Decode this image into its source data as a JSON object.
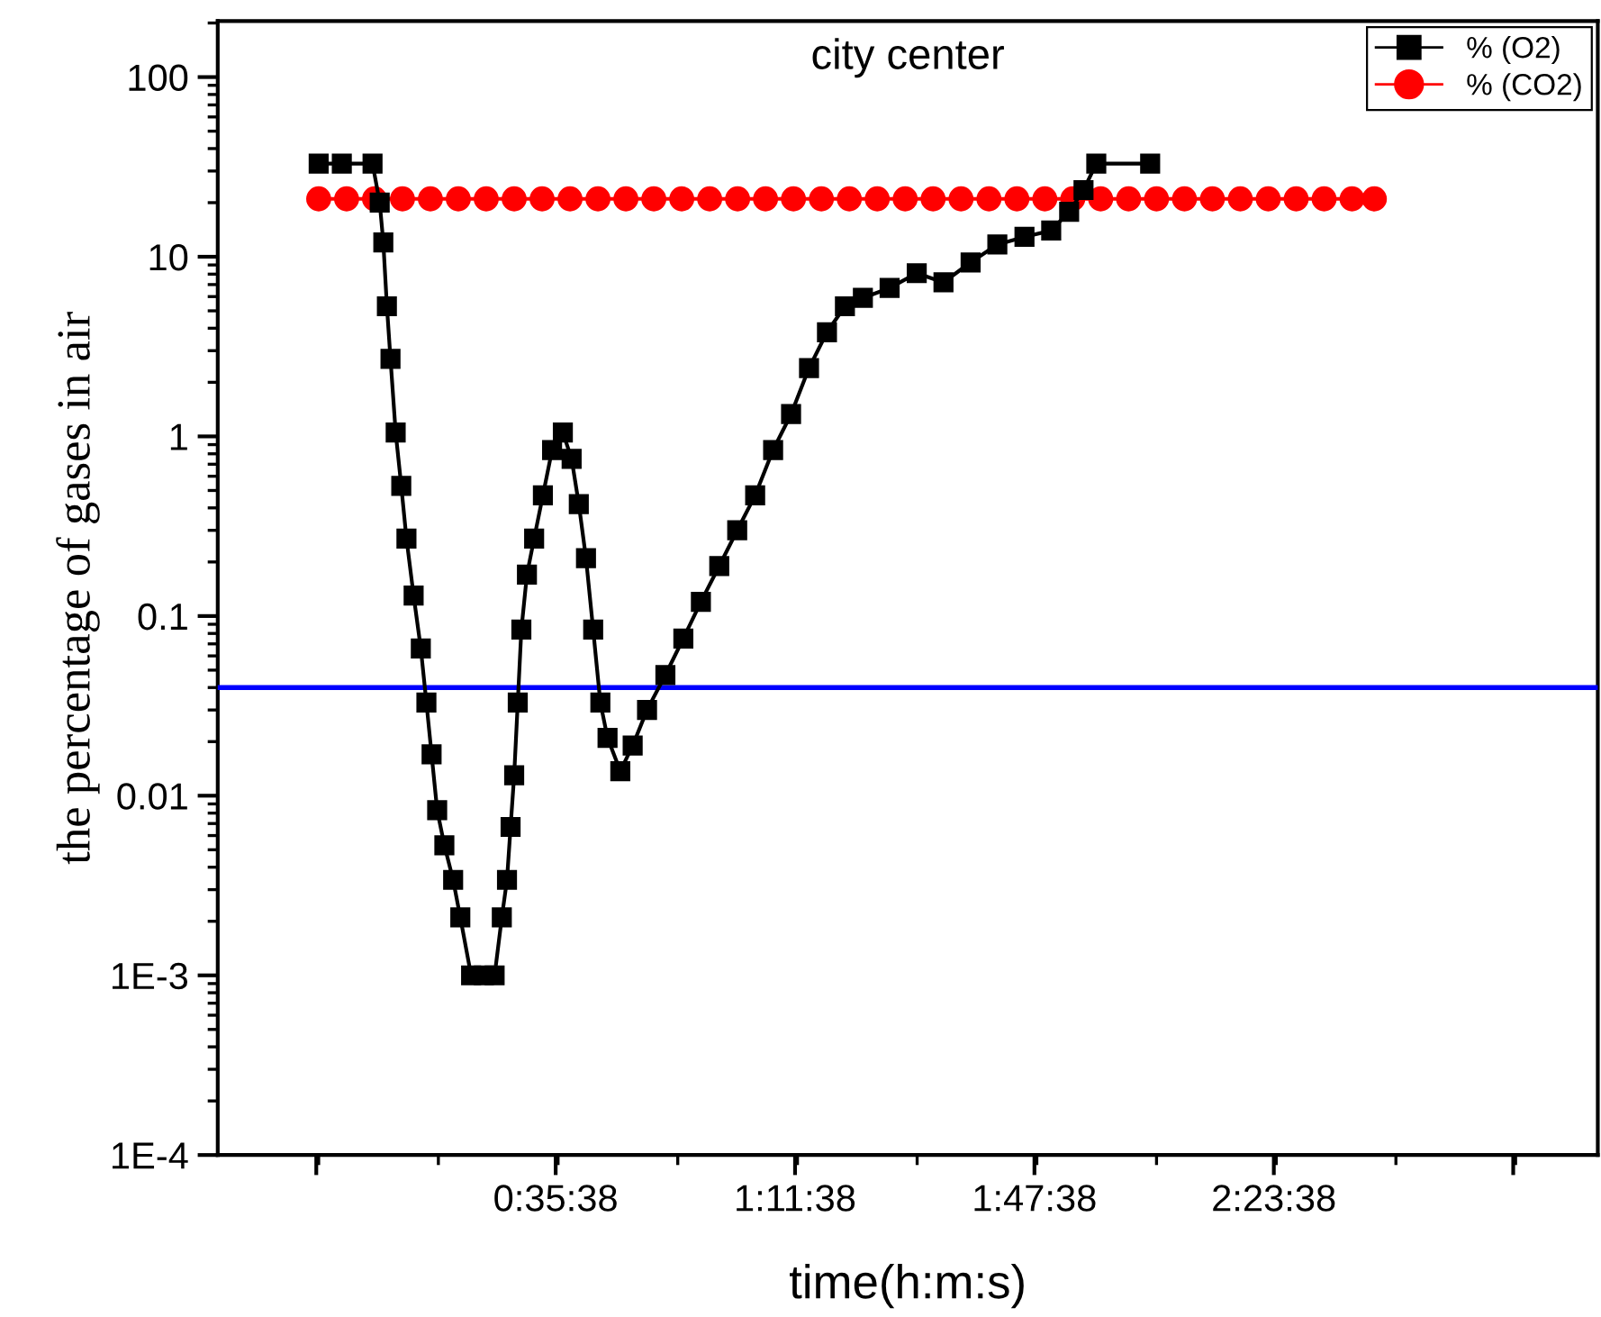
{
  "chart_data": {
    "type": "line",
    "title": "city center",
    "xlabel": "time(h:m:s)",
    "ylabel": "the percentage of gases in air",
    "log": "y",
    "ylim": [
      0.0001,
      205
    ],
    "yticks": [
      {
        "value": 100,
        "label": "100"
      },
      {
        "value": 10,
        "label": "10"
      },
      {
        "value": 1,
        "label": "1"
      },
      {
        "value": 0.1,
        "label": "0.1"
      },
      {
        "value": 0.01,
        "label": "0.01"
      },
      {
        "value": 0.001,
        "label": "1E-3"
      },
      {
        "value": 0.0001,
        "label": "1E-4"
      }
    ],
    "xlim": [
      -0.253,
      3.206
    ],
    "xticks": [
      {
        "value": -0.006,
        "label": null
      },
      {
        "value": 0.594,
        "label": "0:35:38"
      },
      {
        "value": 1.194,
        "label": "1:11:38"
      },
      {
        "value": 1.794,
        "label": "1:47:38"
      },
      {
        "value": 2.394,
        "label": "2:23:38"
      },
      {
        "value": 2.994,
        "label": null
      }
    ],
    "grid": false,
    "legend": "top right",
    "ref_lines": [
      {
        "axis": "y",
        "value": 0.04,
        "color": "#0000ff"
      }
    ],
    "series": [
      {
        "name": "% (O2)",
        "color": "#000000",
        "marker": "square",
        "x": [
          0.0,
          0.058,
          0.135,
          0.153,
          0.162,
          0.171,
          0.18,
          0.193,
          0.207,
          0.22,
          0.238,
          0.256,
          0.27,
          0.283,
          0.297,
          0.315,
          0.337,
          0.355,
          0.382,
          0.414,
          0.441,
          0.459,
          0.472,
          0.481,
          0.49,
          0.499,
          0.508,
          0.522,
          0.54,
          0.562,
          0.585,
          0.612,
          0.634,
          0.652,
          0.67,
          0.688,
          0.706,
          0.724,
          0.756,
          0.787,
          0.823,
          0.869,
          0.914,
          0.958,
          1.004,
          1.049,
          1.094,
          1.139,
          1.184,
          1.229,
          1.274,
          1.319,
          1.364,
          1.431,
          1.499,
          1.566,
          1.634,
          1.701,
          1.769,
          1.836,
          1.881,
          1.917,
          1.949,
          2.084
        ],
        "values": [
          33,
          33,
          33,
          20,
          12,
          5.3,
          2.7,
          1.05,
          0.53,
          0.27,
          0.13,
          0.066,
          0.033,
          0.017,
          0.0083,
          0.0053,
          0.0034,
          0.0021,
          0.001,
          0.001,
          0.001,
          0.0021,
          0.0034,
          0.0067,
          0.013,
          0.033,
          0.084,
          0.17,
          0.27,
          0.47,
          0.84,
          1.05,
          0.75,
          0.42,
          0.21,
          0.084,
          0.033,
          0.021,
          0.0137,
          0.019,
          0.03,
          0.047,
          0.075,
          0.12,
          0.19,
          0.3,
          0.47,
          0.84,
          1.33,
          2.4,
          3.8,
          5.3,
          5.9,
          6.7,
          8.1,
          7.2,
          9.3,
          11.7,
          12.9,
          14,
          17.8,
          23.5,
          33,
          33
        ]
      },
      {
        "name": "% (CO2)",
        "color": "#ff0000",
        "marker": "circle",
        "x": [
          0.0,
          0.07,
          0.14,
          0.21,
          0.28,
          0.35,
          0.42,
          0.49,
          0.56,
          0.63,
          0.7,
          0.77,
          0.84,
          0.91,
          0.98,
          1.05,
          1.12,
          1.19,
          1.26,
          1.33,
          1.4,
          1.47,
          1.54,
          1.61,
          1.68,
          1.75,
          1.82,
          1.89,
          1.96,
          2.03,
          2.1,
          2.17,
          2.24,
          2.31,
          2.38,
          2.45,
          2.52,
          2.59,
          2.646
        ],
        "values": [
          21,
          21,
          21,
          21,
          21,
          21,
          21,
          21,
          21,
          21,
          21,
          21,
          21,
          21,
          21,
          21,
          21,
          21,
          21,
          21,
          21,
          21,
          21,
          21,
          21,
          21,
          21,
          21,
          21,
          21,
          21,
          21,
          21,
          21,
          21,
          21,
          21,
          21,
          21
        ]
      }
    ]
  }
}
